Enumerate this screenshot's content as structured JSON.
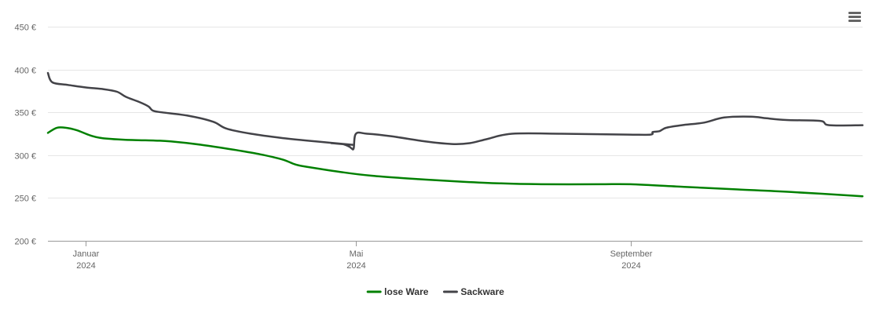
{
  "chart_data": {
    "type": "line",
    "title": "",
    "xlabel": "",
    "ylabel": "",
    "ylim": [
      200,
      450
    ],
    "y_ticks": [
      {
        "value": 200,
        "label": "200 €"
      },
      {
        "value": 250,
        "label": "250 €"
      },
      {
        "value": 300,
        "label": "300 €"
      },
      {
        "value": 350,
        "label": "350 €"
      },
      {
        "value": 400,
        "label": "400 €"
      },
      {
        "value": 450,
        "label": "450 €"
      }
    ],
    "x_range": [
      "2023-12-15",
      "2024-12-14"
    ],
    "x_ticks": [
      {
        "date": "2024-01-01",
        "line1": "Januar",
        "line2": "2024"
      },
      {
        "date": "2024-05-01",
        "line1": "Mai",
        "line2": "2024"
      },
      {
        "date": "2024-09-01",
        "line1": "September",
        "line2": "2024"
      }
    ],
    "grid": true,
    "legend_position": "bottom-center",
    "series": [
      {
        "name": "lose Ware",
        "color": "#008000",
        "points": [
          [
            "2023-12-15",
            326
          ],
          [
            "2023-12-19",
            332
          ],
          [
            "2023-12-23",
            332
          ],
          [
            "2023-12-28",
            329
          ],
          [
            "2024-01-03",
            323
          ],
          [
            "2024-01-08",
            320
          ],
          [
            "2024-01-18",
            318
          ],
          [
            "2024-02-01",
            317
          ],
          [
            "2024-02-08",
            316
          ],
          [
            "2024-02-22",
            312
          ],
          [
            "2024-03-08",
            306
          ],
          [
            "2024-03-19",
            301
          ],
          [
            "2024-03-29",
            295
          ],
          [
            "2024-04-04",
            289
          ],
          [
            "2024-04-10",
            286
          ],
          [
            "2024-04-25",
            280
          ],
          [
            "2024-05-08",
            276
          ],
          [
            "2024-05-29",
            272
          ],
          [
            "2024-06-18",
            269
          ],
          [
            "2024-07-05",
            267
          ],
          [
            "2024-07-23",
            266
          ],
          [
            "2024-08-18",
            266
          ],
          [
            "2024-09-01",
            266
          ],
          [
            "2024-09-25",
            263
          ],
          [
            "2024-10-19",
            260
          ],
          [
            "2024-11-12",
            257
          ],
          [
            "2024-12-14",
            252
          ]
        ]
      },
      {
        "name": "Sackware",
        "color": "#434348",
        "points": [
          [
            "2023-12-15",
            396
          ],
          [
            "2023-12-17",
            385
          ],
          [
            "2023-12-24",
            382
          ],
          [
            "2024-01-01",
            379
          ],
          [
            "2024-01-09",
            377
          ],
          [
            "2024-01-15",
            374
          ],
          [
            "2024-01-19",
            368
          ],
          [
            "2024-01-25",
            362
          ],
          [
            "2024-01-29",
            357
          ],
          [
            "2024-01-31",
            352
          ],
          [
            "2024-02-04",
            350
          ],
          [
            "2024-02-16",
            346
          ],
          [
            "2024-02-27",
            339
          ],
          [
            "2024-03-04",
            331
          ],
          [
            "2024-03-15",
            325
          ],
          [
            "2024-03-29",
            320
          ],
          [
            "2024-04-13",
            316
          ],
          [
            "2024-04-30",
            312
          ],
          [
            "2024-04-20",
            314
          ],
          [
            "2024-04-25",
            313
          ],
          [
            "2024-04-28",
            310
          ],
          [
            "2024-04-29",
            308
          ],
          [
            "2024-04-30",
            308
          ],
          [
            "2024-05-01",
            325
          ],
          [
            "2024-05-06",
            325
          ],
          [
            "2024-05-17",
            322
          ],
          [
            "2024-06-01",
            316
          ],
          [
            "2024-06-13",
            313
          ],
          [
            "2024-06-21",
            314
          ],
          [
            "2024-06-29",
            319
          ],
          [
            "2024-07-10",
            325
          ],
          [
            "2024-08-01",
            325
          ],
          [
            "2024-08-31",
            324
          ],
          [
            "2024-09-10",
            324
          ],
          [
            "2024-09-11",
            327
          ],
          [
            "2024-09-14",
            328
          ],
          [
            "2024-09-17",
            332
          ],
          [
            "2024-09-24",
            335
          ],
          [
            "2024-10-04",
            338
          ],
          [
            "2024-10-13",
            344
          ],
          [
            "2024-10-25",
            345
          ],
          [
            "2024-11-01",
            343
          ],
          [
            "2024-11-10",
            341
          ],
          [
            "2024-11-25",
            340
          ],
          [
            "2024-11-29",
            335
          ],
          [
            "2024-12-14",
            335
          ]
        ]
      }
    ]
  },
  "menu": {
    "icon": "hamburger-menu-icon"
  }
}
